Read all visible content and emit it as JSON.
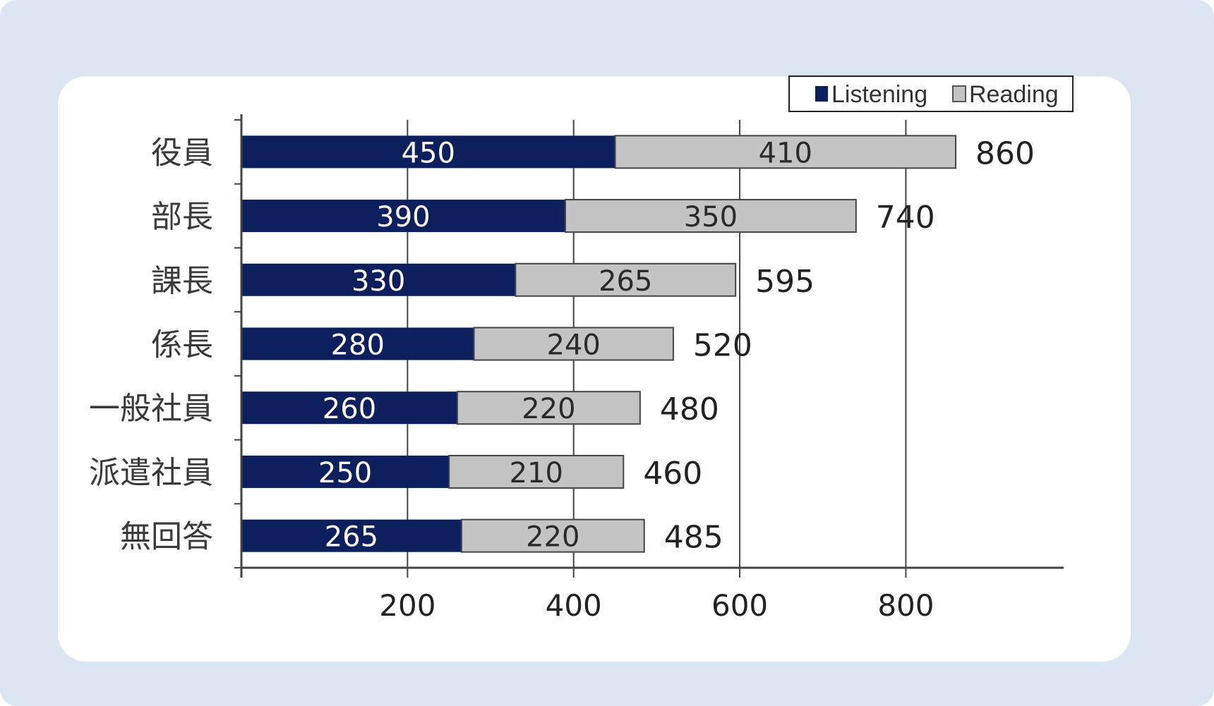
{
  "chart_data": {
    "type": "bar",
    "orientation": "horizontal",
    "stacked": true,
    "categories": [
      "役員",
      "部長",
      "課長",
      "係長",
      "一般社員",
      "派遣社員",
      "無回答"
    ],
    "series": [
      {
        "name": "Listening",
        "values": [
          450,
          390,
          330,
          280,
          260,
          250,
          265
        ],
        "color": "#0d1f5c"
      },
      {
        "name": "Reading",
        "values": [
          410,
          350,
          265,
          240,
          220,
          210,
          220
        ],
        "color": "#c4c4c4"
      }
    ],
    "totals": [
      860,
      740,
      595,
      520,
      480,
      460,
      485
    ],
    "xticks": [
      "200",
      "400",
      "600",
      "800"
    ],
    "xlim": [
      0,
      990
    ],
    "grid": "vertical",
    "legend_position": "top-right",
    "title": "",
    "xlabel": "",
    "ylabel": ""
  },
  "colors": {
    "background": "#dce6f2",
    "plot_area": "#ffffff"
  }
}
